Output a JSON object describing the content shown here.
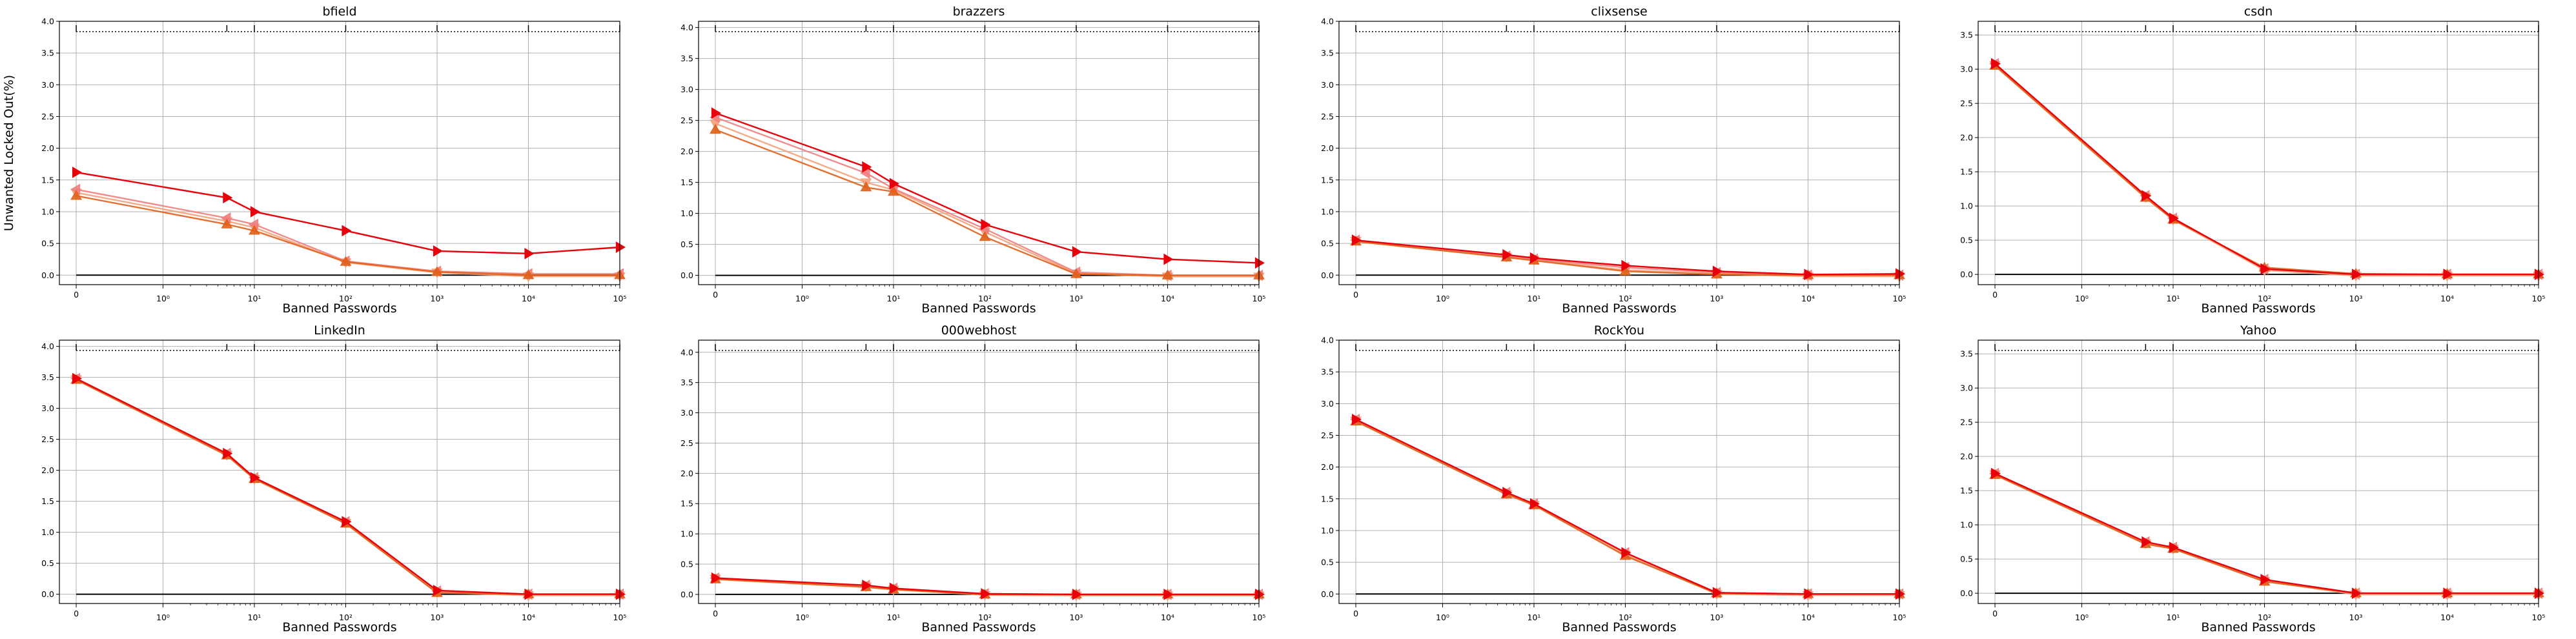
{
  "figure": {
    "ylabel": "Unwanted Locked Out(%)"
  },
  "series_styles": [
    {
      "color": "#e8000b",
      "marker": "triangle-right",
      "opacity": 1.0
    },
    {
      "color": "#f08080",
      "marker": "triangle-left",
      "opacity": 0.9
    },
    {
      "color": "#f4a27a",
      "marker": "triangle-down",
      "opacity": 0.9
    },
    {
      "color": "#e0601a",
      "marker": "triangle-up",
      "opacity": 0.9
    }
  ],
  "chart_data": [
    {
      "type": "line",
      "title": "bfield",
      "xlabel": "Banned Passwords",
      "ylabel": "Unwanted Locked Out(%)",
      "x": [
        0,
        5,
        10,
        100,
        1000,
        10000,
        100000
      ],
      "x_ticks": [
        "0",
        "10⁰",
        "10¹",
        "10²",
        "10³",
        "10⁴",
        "10⁵"
      ],
      "ylim": [
        -0.15,
        4.0
      ],
      "y_ticks": [
        "0.0",
        "0.5",
        "1.0",
        "1.5",
        "2.0",
        "2.5",
        "3.0",
        "3.5",
        "4.0"
      ],
      "series": [
        {
          "values": [
            1.62,
            1.22,
            1.0,
            0.7,
            0.38,
            0.34,
            0.44
          ]
        },
        {
          "values": [
            1.35,
            0.9,
            0.8,
            0.22,
            0.06,
            0.02,
            0.02
          ]
        },
        {
          "values": [
            1.3,
            0.85,
            0.75,
            0.2,
            0.04,
            -0.02,
            -0.02
          ]
        },
        {
          "values": [
            1.25,
            0.8,
            0.7,
            0.21,
            0.05,
            0.0,
            0.0
          ]
        }
      ]
    },
    {
      "type": "line",
      "title": "brazzers",
      "xlabel": "Banned Passwords",
      "ylabel": "",
      "x": [
        0,
        5,
        10,
        100,
        1000,
        10000,
        100000
      ],
      "x_ticks": [
        "0",
        "10⁰",
        "10¹",
        "10²",
        "10³",
        "10⁴",
        "10⁵"
      ],
      "ylim": [
        -0.15,
        4.1
      ],
      "y_ticks": [
        "0.0",
        "0.5",
        "1.0",
        "1.5",
        "2.0",
        "2.5",
        "3.0",
        "3.5",
        "4.0"
      ],
      "series": [
        {
          "values": [
            2.62,
            1.75,
            1.48,
            0.82,
            0.38,
            0.26,
            0.2
          ]
        },
        {
          "values": [
            2.55,
            1.65,
            1.4,
            0.75,
            0.05,
            0.0,
            0.0
          ]
        },
        {
          "values": [
            2.45,
            1.5,
            1.38,
            0.7,
            0.03,
            -0.02,
            -0.02
          ]
        },
        {
          "values": [
            2.35,
            1.42,
            1.35,
            0.62,
            0.02,
            0.0,
            0.0
          ]
        }
      ]
    },
    {
      "type": "line",
      "title": "clixsense",
      "xlabel": "Banned Passwords",
      "ylabel": "",
      "x": [
        0,
        5,
        10,
        100,
        1000,
        10000,
        100000
      ],
      "x_ticks": [
        "0",
        "10⁰",
        "10¹",
        "10²",
        "10³",
        "10⁴",
        "10⁵"
      ],
      "ylim": [
        -0.15,
        4.0
      ],
      "y_ticks": [
        "0.0",
        "0.5",
        "1.0",
        "1.5",
        "2.0",
        "2.5",
        "3.0",
        "3.5",
        "4.0"
      ],
      "series": [
        {
          "values": [
            0.55,
            0.32,
            0.27,
            0.15,
            0.06,
            0.01,
            0.02
          ]
        },
        {
          "values": [
            0.55,
            0.3,
            0.25,
            0.12,
            0.04,
            0.0,
            0.0
          ]
        },
        {
          "values": [
            0.54,
            0.29,
            0.24,
            0.08,
            0.02,
            -0.02,
            -0.02
          ]
        },
        {
          "values": [
            0.53,
            0.28,
            0.23,
            0.06,
            0.01,
            0.0,
            0.0
          ]
        }
      ]
    },
    {
      "type": "line",
      "title": "csdn",
      "xlabel": "Banned Passwords",
      "ylabel": "",
      "x": [
        0,
        5,
        10,
        100,
        1000,
        10000,
        100000
      ],
      "x_ticks": [
        "0",
        "10⁰",
        "10¹",
        "10²",
        "10³",
        "10⁴",
        "10⁵"
      ],
      "ylim": [
        -0.15,
        3.7
      ],
      "y_ticks": [
        "0.0",
        "0.5",
        "1.0",
        "1.5",
        "2.0",
        "2.5",
        "3.0",
        "3.5"
      ],
      "series": [
        {
          "values": [
            3.08,
            1.15,
            0.82,
            0.08,
            0.0,
            0.0,
            0.0
          ]
        },
        {
          "values": [
            3.08,
            1.15,
            0.82,
            0.08,
            0.0,
            0.0,
            0.0
          ]
        },
        {
          "values": [
            3.06,
            1.13,
            0.8,
            0.06,
            -0.02,
            -0.02,
            -0.02
          ]
        },
        {
          "values": [
            3.05,
            1.12,
            0.8,
            0.1,
            0.01,
            0.0,
            0.0
          ]
        }
      ]
    },
    {
      "type": "line",
      "title": "LinkedIn",
      "xlabel": "Banned Passwords",
      "ylabel": "",
      "x": [
        0,
        5,
        10,
        100,
        1000,
        10000,
        100000
      ],
      "x_ticks": [
        "0",
        "10⁰",
        "10¹",
        "10²",
        "10³",
        "10⁴",
        "10⁵"
      ],
      "ylim": [
        -0.15,
        4.1
      ],
      "y_ticks": [
        "0.0",
        "0.5",
        "1.0",
        "1.5",
        "2.0",
        "2.5",
        "3.0",
        "3.5",
        "4.0"
      ],
      "series": [
        {
          "values": [
            3.48,
            2.27,
            1.88,
            1.17,
            0.06,
            0.0,
            0.0
          ]
        },
        {
          "values": [
            3.48,
            2.27,
            1.88,
            1.17,
            0.05,
            0.0,
            0.0
          ]
        },
        {
          "values": [
            3.47,
            2.25,
            1.86,
            1.15,
            0.03,
            -0.02,
            -0.02
          ]
        },
        {
          "values": [
            3.46,
            2.24,
            1.86,
            1.14,
            0.02,
            0.0,
            0.0
          ]
        }
      ]
    },
    {
      "type": "line",
      "title": "000webhost",
      "xlabel": "Banned Passwords",
      "ylabel": "",
      "x": [
        0,
        5,
        10,
        100,
        1000,
        10000,
        100000
      ],
      "x_ticks": [
        "0",
        "10⁰",
        "10¹",
        "10²",
        "10³",
        "10⁴",
        "10⁵"
      ],
      "ylim": [
        -0.15,
        4.2
      ],
      "y_ticks": [
        "0.0",
        "0.5",
        "1.0",
        "1.5",
        "2.0",
        "2.5",
        "3.0",
        "3.5",
        "4.0"
      ],
      "series": [
        {
          "values": [
            0.27,
            0.15,
            0.1,
            0.01,
            0.0,
            0.0,
            0.0
          ]
        },
        {
          "values": [
            0.27,
            0.15,
            0.1,
            0.01,
            0.0,
            0.0,
            0.0
          ]
        },
        {
          "values": [
            0.26,
            0.13,
            0.08,
            -0.01,
            -0.02,
            -0.02,
            -0.02
          ]
        },
        {
          "values": [
            0.25,
            0.12,
            0.08,
            0.0,
            0.0,
            0.0,
            0.0
          ]
        }
      ]
    },
    {
      "type": "line",
      "title": "RockYou",
      "xlabel": "Banned Passwords",
      "ylabel": "",
      "x": [
        0,
        5,
        10,
        100,
        1000,
        10000,
        100000
      ],
      "x_ticks": [
        "0",
        "10⁰",
        "10¹",
        "10²",
        "10³",
        "10⁴",
        "10⁵"
      ],
      "ylim": [
        -0.15,
        4.0
      ],
      "y_ticks": [
        "0.0",
        "0.5",
        "1.0",
        "1.5",
        "2.0",
        "2.5",
        "3.0",
        "3.5",
        "4.0"
      ],
      "series": [
        {
          "values": [
            2.75,
            1.6,
            1.42,
            0.65,
            0.02,
            0.0,
            0.0
          ]
        },
        {
          "values": [
            2.75,
            1.6,
            1.42,
            0.65,
            0.02,
            0.0,
            0.0
          ]
        },
        {
          "values": [
            2.73,
            1.58,
            1.4,
            0.62,
            0.0,
            -0.02,
            -0.02
          ]
        },
        {
          "values": [
            2.72,
            1.57,
            1.4,
            0.6,
            0.01,
            0.0,
            0.0
          ]
        }
      ]
    },
    {
      "type": "line",
      "title": "Yahoo",
      "xlabel": "Banned Passwords",
      "ylabel": "",
      "x": [
        0,
        5,
        10,
        100,
        1000,
        10000,
        100000
      ],
      "x_ticks": [
        "0",
        "10⁰",
        "10¹",
        "10²",
        "10³",
        "10⁴",
        "10⁵"
      ],
      "ylim": [
        -0.15,
        3.7
      ],
      "y_ticks": [
        "0.0",
        "0.5",
        "1.0",
        "1.5",
        "2.0",
        "2.5",
        "3.0",
        "3.5"
      ],
      "series": [
        {
          "values": [
            1.75,
            0.75,
            0.67,
            0.2,
            0.0,
            0.0,
            0.0
          ]
        },
        {
          "values": [
            1.75,
            0.75,
            0.67,
            0.2,
            0.0,
            0.0,
            0.0
          ]
        },
        {
          "values": [
            1.74,
            0.73,
            0.65,
            0.18,
            -0.02,
            -0.02,
            -0.02
          ]
        },
        {
          "values": [
            1.73,
            0.72,
            0.65,
            0.17,
            0.0,
            0.0,
            0.0
          ]
        }
      ]
    }
  ]
}
